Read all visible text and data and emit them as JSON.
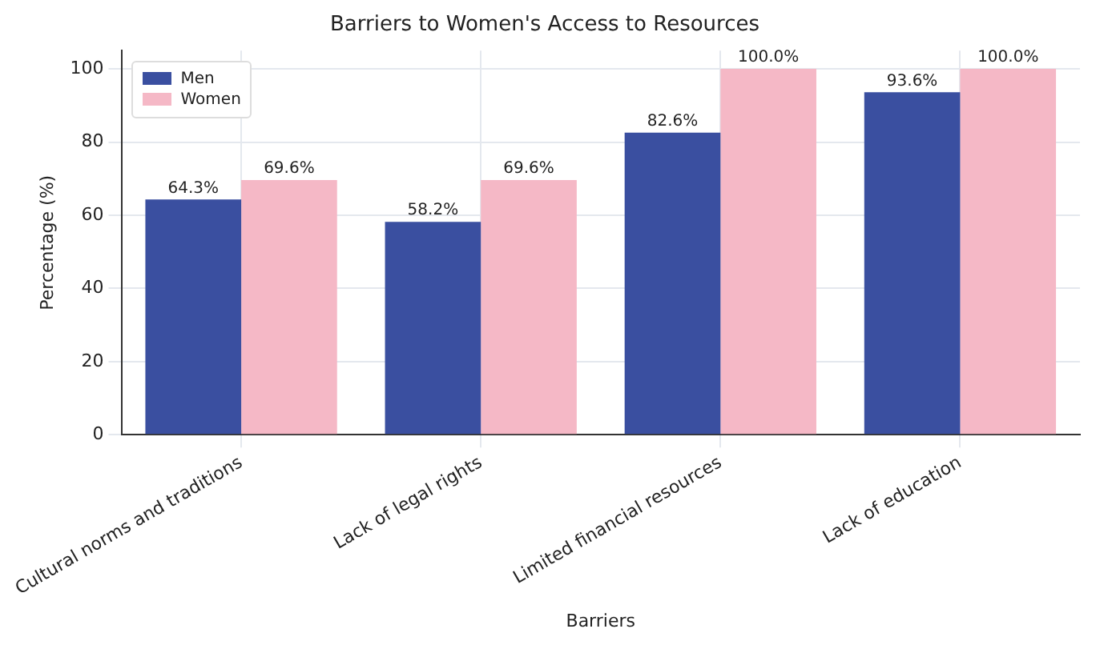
{
  "chart_data": {
    "type": "bar",
    "title": "Barriers to Women's Access to Resources",
    "xlabel": "Barriers",
    "ylabel": "Percentage (%)",
    "categories": [
      "Cultural norms and traditions",
      "Lack of legal rights",
      "Limited financial resources",
      "Lack of education"
    ],
    "series": [
      {
        "name": "Men",
        "color": "#3a4fa0",
        "values": [
          64.3,
          58.2,
          82.6,
          93.6
        ],
        "value_labels": [
          "64.3%",
          "58.2%",
          "82.6%",
          "93.6%"
        ]
      },
      {
        "name": "Women",
        "color": "#f5b8c6",
        "values": [
          69.6,
          69.6,
          100.0,
          100.0
        ],
        "value_labels": [
          "69.6%",
          "69.6%",
          "100.0%",
          "100.0%"
        ]
      }
    ],
    "ylim": [
      0,
      105
    ],
    "yticks": [
      0,
      20,
      40,
      60,
      80,
      100
    ],
    "grid": true,
    "legend": "top left"
  }
}
